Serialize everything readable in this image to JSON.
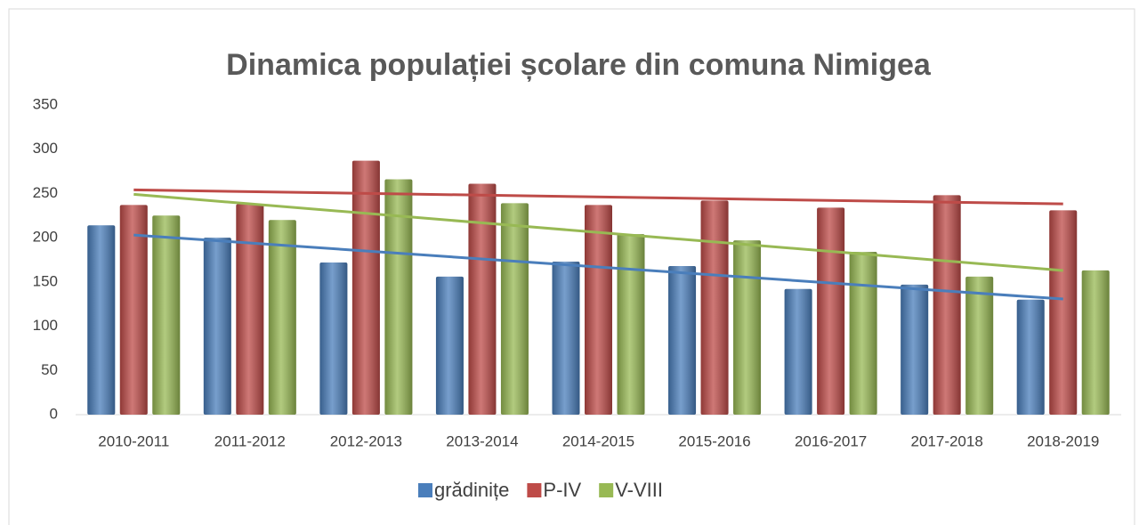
{
  "chart_data": {
    "type": "bar",
    "title": "Dinamica populației școlare din comuna Nimigea",
    "categories": [
      "2010-2011",
      "2011-2012",
      "2012-2013",
      "2013-2014",
      "2014-2015",
      "2015-2016",
      "2016-2017",
      "2017-2018",
      "2018-2019"
    ],
    "series": [
      {
        "name": "grădinițe",
        "color": "#4a7ebb",
        "values": [
          214,
          200,
          172,
          156,
          173,
          168,
          142,
          147,
          130
        ]
      },
      {
        "name": "P-IV",
        "color": "#be4b48",
        "values": [
          237,
          238,
          287,
          261,
          237,
          242,
          234,
          248,
          231
        ]
      },
      {
        "name": "V-VIII",
        "color": "#98b954",
        "values": [
          225,
          220,
          266,
          239,
          204,
          197,
          184,
          156,
          163
        ]
      }
    ],
    "ylim": [
      0,
      350
    ],
    "yticks": [
      0,
      50,
      100,
      150,
      200,
      250,
      300,
      350
    ],
    "grid": false,
    "trendline": true,
    "legend": "bottom"
  }
}
